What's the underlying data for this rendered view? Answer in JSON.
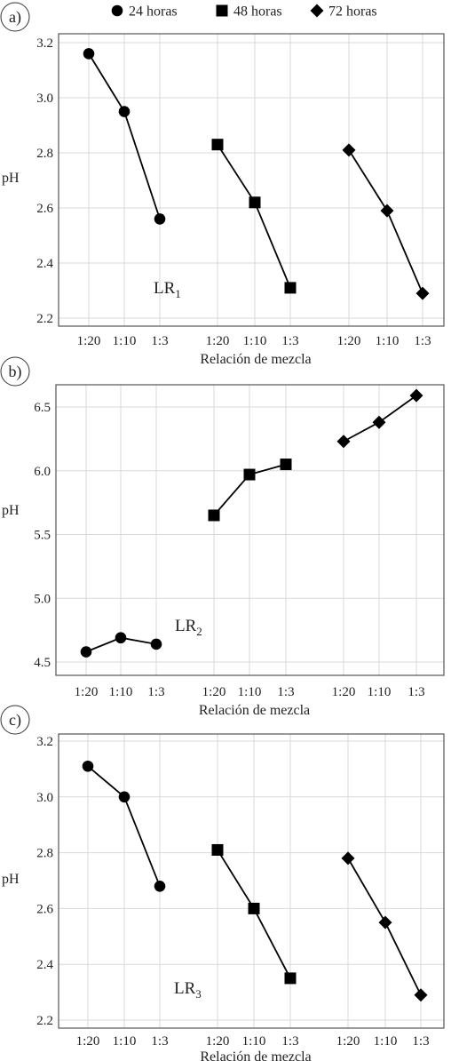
{
  "legend": [
    {
      "label": "24 horas",
      "marker": "circle"
    },
    {
      "label": "48 horas",
      "marker": "square"
    },
    {
      "label": "72 horas",
      "marker": "diamond"
    }
  ],
  "colors": {
    "marker": "#000000",
    "line": "#000000",
    "grid": "#d9d9d9",
    "frame": "#555555"
  },
  "chart_data": [
    {
      "type": "line",
      "panel_label": "a)",
      "annotation": {
        "main": "LR",
        "sub": "1"
      },
      "xlabel": "Relación de mezcla",
      "ylabel": "pH",
      "ylim": [
        2.17,
        3.22
      ],
      "yticks": [
        2.2,
        2.4,
        2.6,
        2.8,
        3.0,
        3.2
      ],
      "ytick_labels": [
        "2.2",
        "2.4",
        "2.6",
        "2.8",
        "3.0",
        "3.2"
      ],
      "categories": [
        "1:20",
        "1:10",
        "1:3"
      ],
      "grid": true,
      "series": [
        {
          "name": "24 horas",
          "values": [
            3.16,
            2.95,
            2.56
          ]
        },
        {
          "name": "48 horas",
          "values": [
            2.83,
            2.62,
            2.31
          ]
        },
        {
          "name": "72 horas",
          "values": [
            2.81,
            2.59,
            2.29
          ]
        }
      ]
    },
    {
      "type": "line",
      "panel_label": "b)",
      "annotation": {
        "main": "LR",
        "sub": "2"
      },
      "xlabel": "Relación de mezcla",
      "ylabel": "pH",
      "ylim": [
        4.45,
        6.65
      ],
      "yticks": [
        4.5,
        5.0,
        5.5,
        6.0,
        6.5
      ],
      "ytick_labels": [
        "4.5",
        "5.0",
        "5.5",
        "6.0",
        "6.5"
      ],
      "categories": [
        "1:20",
        "1:10",
        "1:3"
      ],
      "grid": true,
      "series": [
        {
          "name": "24 horas",
          "values": [
            4.58,
            4.69,
            4.64
          ]
        },
        {
          "name": "48 horas",
          "values": [
            5.65,
            5.97,
            6.05
          ]
        },
        {
          "name": "72 horas",
          "values": [
            6.23,
            6.38,
            6.59
          ]
        }
      ]
    },
    {
      "type": "line",
      "panel_label": "c)",
      "annotation": {
        "main": "LR",
        "sub": "3"
      },
      "xlabel": "Relación de mezcla",
      "ylabel": "pH",
      "ylim": [
        2.17,
        3.22
      ],
      "yticks": [
        2.2,
        2.4,
        2.6,
        2.8,
        3.0,
        3.2
      ],
      "ytick_labels": [
        "2.2",
        "2.4",
        "2.6",
        "2.8",
        "3.0",
        "3.2"
      ],
      "categories": [
        "1:20",
        "1:10",
        "1:3"
      ],
      "grid": true,
      "series": [
        {
          "name": "24 horas",
          "values": [
            3.11,
            3.0,
            2.68
          ]
        },
        {
          "name": "48 horas",
          "values": [
            2.81,
            2.6,
            2.35
          ]
        },
        {
          "name": "72 horas",
          "values": [
            2.78,
            2.55,
            2.29
          ]
        }
      ]
    }
  ]
}
